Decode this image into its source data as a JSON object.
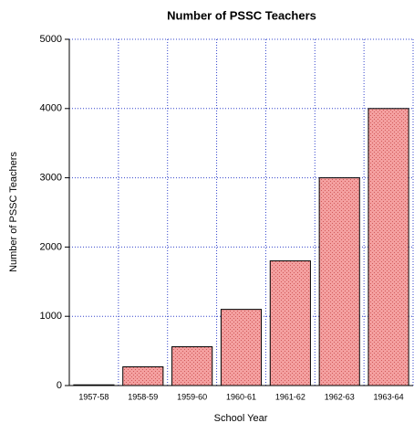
{
  "chart_data": {
    "type": "bar",
    "title": "Number of PSSC Teachers",
    "x_label": "School Year",
    "y_label": "Number of PSSC Teachers",
    "categories": [
      "1957-58",
      "1958-59",
      "1959-60",
      "1960-61",
      "1961-62",
      "1962-63",
      "1963-64"
    ],
    "values": [
      10,
      270,
      560,
      1100,
      1800,
      3000,
      4000
    ],
    "color": "#f08080",
    "ylim": [
      0,
      5000
    ],
    "yticks": [
      0,
      1000,
      2000,
      3000,
      4000,
      5000
    ],
    "grid": true
  }
}
